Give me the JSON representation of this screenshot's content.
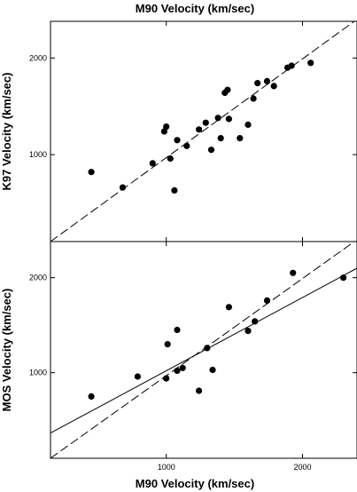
{
  "figure": {
    "top_xlabel": "M90 Velocity (km/sec)",
    "bottom_xlabel": "M90 Velocity (km/sec)"
  },
  "chart_data": [
    {
      "type": "scatter",
      "title": "",
      "xlabel": "M90 Velocity (km/sec)",
      "ylabel": "K97 Velocity (km/sec)",
      "xlim": [
        150,
        2400
      ],
      "ylim": [
        100,
        2380
      ],
      "xticks": [
        1000,
        2000
      ],
      "xtick_labels": [
        "",
        ""
      ],
      "yticks": [
        1000,
        2000
      ],
      "ytick_labels": [
        "1000",
        "2000"
      ],
      "grid": false,
      "series": [
        {
          "kind": "points",
          "points": [
            [
              450,
              820
            ],
            [
              680,
              660
            ],
            [
              900,
              910
            ],
            [
              985,
              1240
            ],
            [
              1000,
              1290
            ],
            [
              1030,
              960
            ],
            [
              1060,
              630
            ],
            [
              1080,
              1150
            ],
            [
              1150,
              1090
            ],
            [
              1240,
              1260
            ],
            [
              1290,
              1330
            ],
            [
              1330,
              1050
            ],
            [
              1380,
              1380
            ],
            [
              1400,
              1170
            ],
            [
              1430,
              1640
            ],
            [
              1450,
              1670
            ],
            [
              1460,
              1370
            ],
            [
              1540,
              1170
            ],
            [
              1600,
              1310
            ],
            [
              1640,
              1580
            ],
            [
              1670,
              1740
            ],
            [
              1740,
              1760
            ],
            [
              1790,
              1710
            ],
            [
              1890,
              1900
            ],
            [
              1920,
              1920
            ],
            [
              2060,
              1950
            ]
          ]
        },
        {
          "kind": "line",
          "style": "dashed",
          "label": "",
          "x": [
            150,
            2400
          ],
          "y": [
            100,
            2400
          ]
        }
      ]
    },
    {
      "type": "scatter",
      "title": "",
      "xlabel": "M90 Velocity (km/sec)",
      "ylabel": "MOS Velocity (km/sec)",
      "xlim": [
        150,
        2400
      ],
      "ylim": [
        100,
        2380
      ],
      "xticks": [
        1000,
        2000
      ],
      "xtick_labels": [
        "1000",
        "2000"
      ],
      "yticks": [
        1000,
        2000
      ],
      "ytick_labels": [
        "1000",
        "2000"
      ],
      "grid": false,
      "series": [
        {
          "kind": "points",
          "points": [
            [
              450,
              750
            ],
            [
              790,
              960
            ],
            [
              1000,
              940
            ],
            [
              1010,
              1300
            ],
            [
              1080,
              1450
            ],
            [
              1080,
              1020
            ],
            [
              1120,
              1050
            ],
            [
              1240,
              810
            ],
            [
              1300,
              1260
            ],
            [
              1340,
              1030
            ],
            [
              1460,
              1690
            ],
            [
              1600,
              1440
            ],
            [
              1650,
              1540
            ],
            [
              1740,
              1760
            ],
            [
              1930,
              2050
            ],
            [
              2300,
              2000
            ]
          ]
        },
        {
          "kind": "line",
          "style": "dashed",
          "label": "",
          "x": [
            150,
            2400
          ],
          "y": [
            100,
            2400
          ]
        },
        {
          "kind": "line",
          "style": "solid",
          "label": "",
          "x": [
            150,
            2400
          ],
          "y": [
            365,
            2100
          ]
        }
      ]
    }
  ]
}
